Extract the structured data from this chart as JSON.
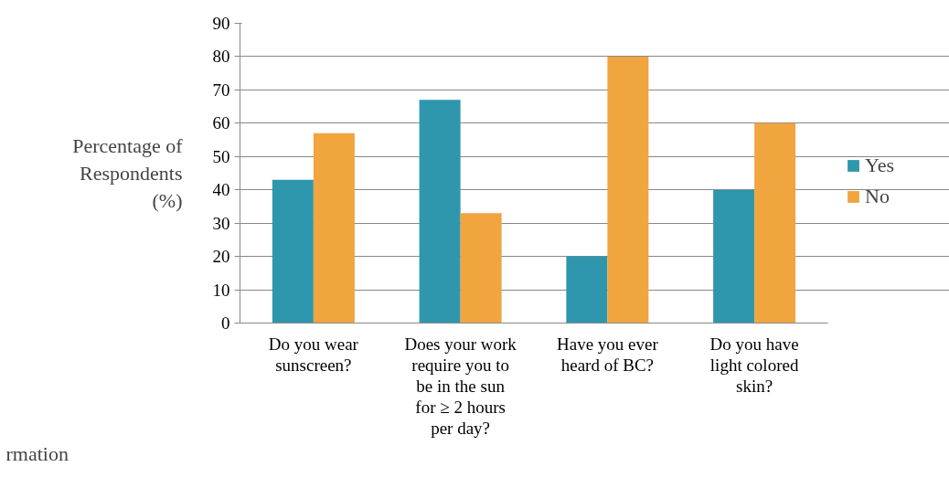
{
  "chart_data": {
    "type": "bar",
    "ylabel": "Percentage of Respondents (%)",
    "categories": [
      "Do you wear sunscreen?",
      "Does your work require you to be in the sun for ≥ 2 hours per day?",
      "Have you ever heard of BC?",
      "Do you have light colored skin?"
    ],
    "series": [
      {
        "name": "Yes",
        "color": "#2e97ad",
        "values": [
          43,
          67,
          20,
          40
        ]
      },
      {
        "name": "No",
        "color": "#f0a53f",
        "values": [
          57,
          33,
          80,
          60
        ]
      }
    ],
    "ylim": [
      0,
      90
    ],
    "yticks": [
      0,
      10,
      20,
      30,
      40,
      50,
      60,
      70,
      80,
      90
    ],
    "grid": "y",
    "legend": "right",
    "annotations": [
      "rmation"
    ]
  }
}
